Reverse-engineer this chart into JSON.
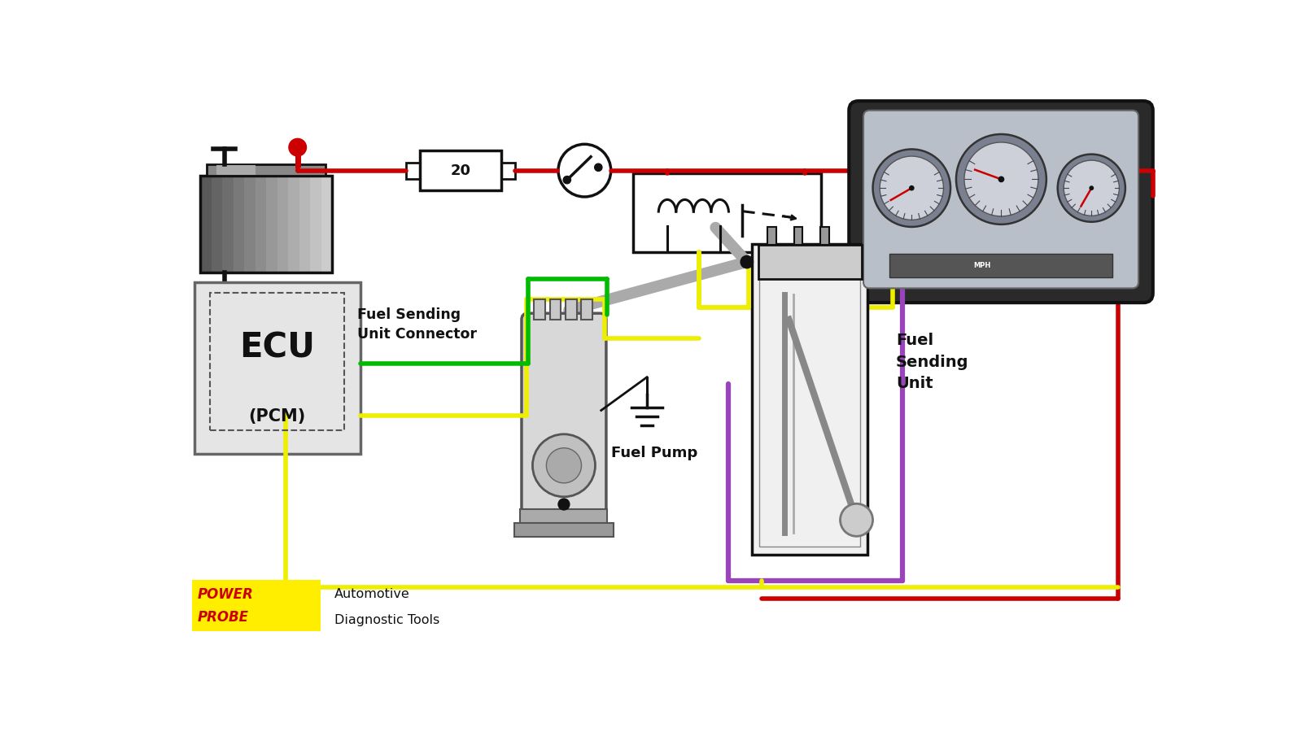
{
  "bg_color": "#ffffff",
  "wire_colors": {
    "red": "#cc0000",
    "yellow": "#eeee00",
    "green": "#00bb00",
    "black": "#111111",
    "gray": "#999999",
    "purple": "#9944bb"
  },
  "labels": {
    "fuel_sending_connector": "Fuel Sending\nUnit Connector",
    "fuel_pump": "Fuel Pump",
    "fuel_sending_unit": "Fuel\nSending\nUnit",
    "ecu": "ECU",
    "pcm": "(PCM)",
    "fuse_label": "20",
    "brand_power": "POWER",
    "brand_probe": "PROBE",
    "brand_sub1": "Automotive",
    "brand_sub2": "Diagnostic Tools"
  }
}
